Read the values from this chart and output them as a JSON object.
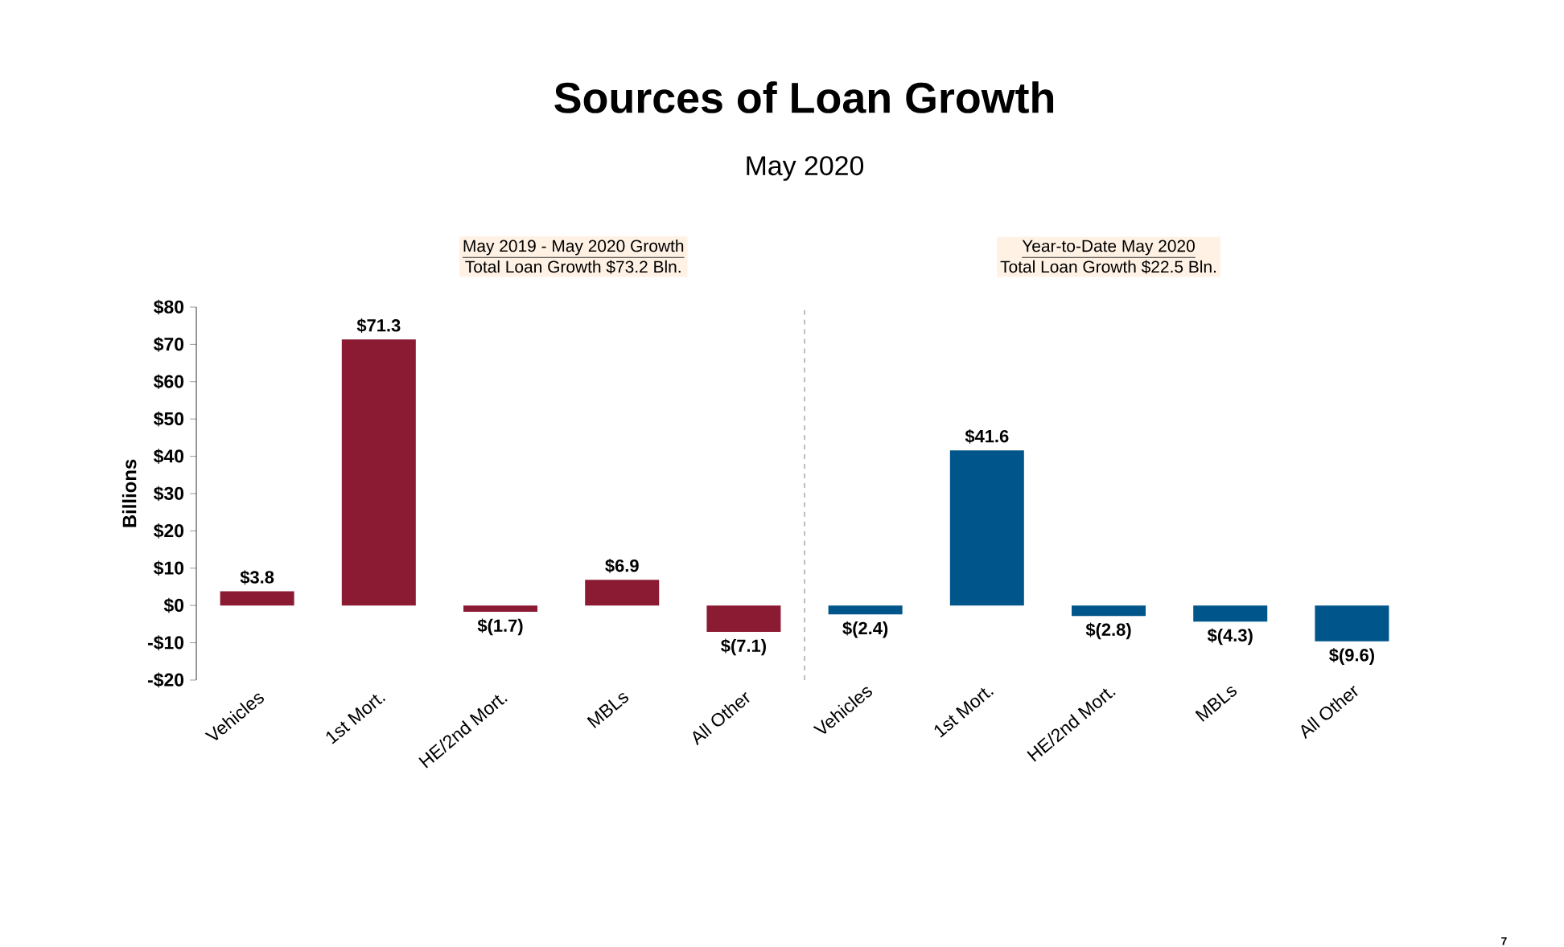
{
  "chart_data": [
    {
      "type": "bar",
      "title": "Sources of Loan Growth",
      "subtitle": "May 2020",
      "ylabel": "Billions",
      "categories": [
        "Vehicles",
        "1st Mort.",
        "HE/2nd Mort.",
        "MBLs",
        "All Other"
      ],
      "series": [
        {
          "color": "#8b1a33",
          "values": [
            3.8,
            71.3,
            -1.7,
            6.9,
            -7.1
          ],
          "value_labels": [
            "$3.8",
            "$71.3",
            "$(1.7)",
            "$6.9",
            "$(7.1)"
          ]
        }
      ],
      "ylim": [
        -20,
        80
      ],
      "yticks": [
        {
          "value": -20,
          "label": "-$20"
        },
        {
          "value": -10,
          "label": "-$10"
        },
        {
          "value": 0,
          "label": "$0"
        },
        {
          "value": 10,
          "label": "$10"
        },
        {
          "value": 20,
          "label": "$20"
        },
        {
          "value": 30,
          "label": "$30"
        },
        {
          "value": 40,
          "label": "$40"
        },
        {
          "value": 50,
          "label": "$50"
        },
        {
          "value": 60,
          "label": "$60"
        },
        {
          "value": 70,
          "label": "$70"
        },
        {
          "value": 80,
          "label": "$80"
        }
      ],
      "annotations": [
        "May 2019 - May 2020 Growth",
        "Total Loan Growth $73.2 Bln."
      ]
    },
    {
      "type": "bar",
      "categories": [
        "Vehicles",
        "1st Mort.",
        "HE/2nd Mort.",
        "MBLs",
        "All Other"
      ],
      "series": [
        {
          "color": "#00568a",
          "values": [
            -2.4,
            41.6,
            -2.8,
            -4.3,
            -9.6
          ],
          "value_labels": [
            "$(2.4)",
            "$41.6",
            "$(2.8)",
            "$(4.3)",
            "$(9.6)"
          ]
        }
      ],
      "ylim": [
        -20,
        80
      ],
      "tick_labels": "x",
      "annotations": [
        "Year-to-Date May 2020",
        "Total Loan Growth $22.5 Bln.",
        "7"
      ]
    }
  ]
}
